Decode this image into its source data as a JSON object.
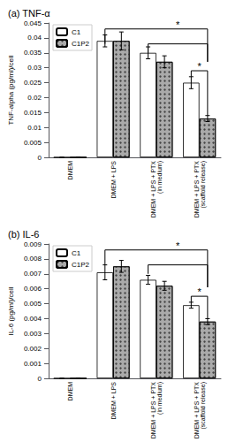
{
  "chart_data": [
    {
      "type": "bar",
      "title": "(a) TNF-α",
      "ylabel": "TNF-alpha (pg/ml)/cell",
      "categories": [
        "DMEM",
        "DMEM + LPS",
        "DMEM + LPS + PTX\n(in medium)",
        "DMEM + LPS + PTX\n(scaffold release)"
      ],
      "series": [
        {
          "name": "C1",
          "color": "#ffffff",
          "values": [
            0.0,
            0.039,
            0.035,
            0.025
          ],
          "errors": [
            0.0,
            0.002,
            0.002,
            0.002
          ]
        },
        {
          "name": "C1P2",
          "color": "#aaaaaa",
          "values": [
            0.0,
            0.039,
            0.032,
            0.013
          ],
          "errors": [
            0.0,
            0.003,
            0.002,
            0.001
          ]
        }
      ],
      "ylim": [
        0,
        0.045
      ],
      "yticks": [
        0,
        0.005,
        0.01,
        0.015,
        0.02,
        0.025,
        0.03,
        0.035,
        0.04,
        0.045
      ],
      "grid": false,
      "legend": "upper left",
      "significance": {
        "label": "*",
        "top_y": 0.043,
        "inner_y": 0.038,
        "local_y": 0.029,
        "local_top_offset": 0.003,
        "star_top_offset": 0.0008,
        "star_inner_offset": 0.0008
      }
    },
    {
      "type": "bar",
      "title": "(b) IL-6",
      "ylabel": "IL-6 (pg/ml)/cell",
      "categories": [
        "DMEM",
        "DMEM + LPS",
        "DMEM + LPS + PTX\n(in medium)",
        "DMEM + LPS + PTX\n(scaffold release)"
      ],
      "series": [
        {
          "name": "C1",
          "color": "#ffffff",
          "values": [
            0.0,
            0.0071,
            0.0066,
            0.0049
          ],
          "errors": [
            0.0,
            0.0005,
            0.0003,
            0.0002
          ]
        },
        {
          "name": "C1P2",
          "color": "#aaaaaa",
          "values": [
            0.0,
            0.0075,
            0.0062,
            0.0038
          ],
          "errors": [
            0.0,
            0.0004,
            0.0003,
            0.0002
          ]
        }
      ],
      "ylim": [
        0,
        0.009
      ],
      "yticks": [
        0,
        0.001,
        0.002,
        0.003,
        0.004,
        0.005,
        0.006,
        0.007,
        0.008,
        0.009
      ],
      "grid": false,
      "legend": "upper left",
      "significance": {
        "label": "*",
        "top_y": 0.0086,
        "inner_y": 0.0076,
        "local_y": 0.0055,
        "local_top_offset": 0.0006,
        "star_top_offset": 0.00015,
        "star_inner_offset": 0.00015
      }
    }
  ]
}
